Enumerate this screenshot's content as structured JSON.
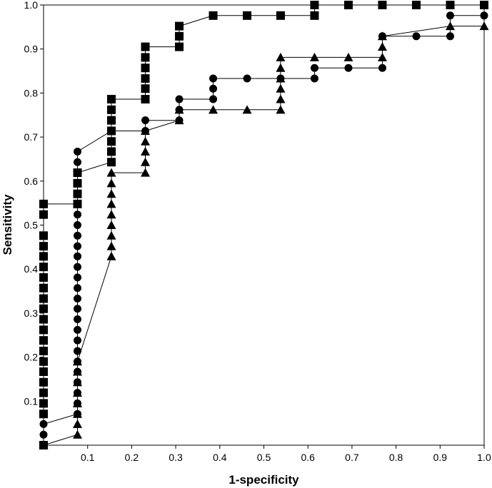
{
  "chart_data": {
    "type": "line",
    "title": "",
    "xlabel": "1-specificity",
    "ylabel": "Sensitivity",
    "xlim": [
      0,
      1
    ],
    "ylim": [
      0,
      1
    ],
    "x_ticks": [
      {
        "value": 0.1,
        "label": "0.1"
      },
      {
        "value": 0.2,
        "label": "0.2"
      },
      {
        "value": 0.3,
        "label": "0.3"
      },
      {
        "value": 0.4,
        "label": "0.4"
      },
      {
        "value": 0.5,
        "label": "0.5"
      },
      {
        "value": 0.6,
        "label": "0.6"
      },
      {
        "value": 0.7,
        "label": "0.7"
      },
      {
        "value": 0.8,
        "label": "0.8"
      },
      {
        "value": 0.9,
        "label": "0.9"
      },
      {
        "value": 1.0,
        "label": "1.0"
      }
    ],
    "y_ticks": [
      {
        "value": 0.1,
        "label": "0.1"
      },
      {
        "value": 0.2,
        "label": "0.2"
      },
      {
        "value": 0.3,
        "label": "0.3"
      },
      {
        "value": 0.4,
        "label": "0.4"
      },
      {
        "value": 0.5,
        "label": "0.5"
      },
      {
        "value": 0.6,
        "label": "0.6"
      },
      {
        "value": 0.7,
        "label": "0.7"
      },
      {
        "value": 0.8,
        "label": "0.8"
      },
      {
        "value": 0.9,
        "label": "0.9"
      },
      {
        "value": 1.0,
        "label": "1.0"
      }
    ],
    "grid": false,
    "legend": "none",
    "series": [
      {
        "marker": "square",
        "color": "#000000",
        "points": [
          [
            0,
            0
          ],
          [
            0,
            0.071
          ],
          [
            0,
            0.095
          ],
          [
            0,
            0.119
          ],
          [
            0,
            0.143
          ],
          [
            0,
            0.167
          ],
          [
            0,
            0.19
          ],
          [
            0,
            0.214
          ],
          [
            0,
            0.238
          ],
          [
            0,
            0.262
          ],
          [
            0,
            0.286
          ],
          [
            0,
            0.31
          ],
          [
            0,
            0.333
          ],
          [
            0,
            0.357
          ],
          [
            0,
            0.381
          ],
          [
            0,
            0.405
          ],
          [
            0,
            0.429
          ],
          [
            0,
            0.452
          ],
          [
            0,
            0.476
          ],
          [
            0,
            0.524
          ],
          [
            0,
            0.548
          ],
          [
            0.077,
            0.548
          ],
          [
            0.077,
            0.571
          ],
          [
            0.077,
            0.595
          ],
          [
            0.077,
            0.619
          ],
          [
            0.154,
            0.643
          ],
          [
            0.154,
            0.667
          ],
          [
            0.154,
            0.69
          ],
          [
            0.154,
            0.714
          ],
          [
            0.154,
            0.738
          ],
          [
            0.154,
            0.762
          ],
          [
            0.154,
            0.786
          ],
          [
            0.231,
            0.786
          ],
          [
            0.231,
            0.81
          ],
          [
            0.231,
            0.833
          ],
          [
            0.231,
            0.857
          ],
          [
            0.231,
            0.881
          ],
          [
            0.231,
            0.905
          ],
          [
            0.308,
            0.905
          ],
          [
            0.308,
            0.929
          ],
          [
            0.308,
            0.952
          ],
          [
            0.385,
            0.976
          ],
          [
            0.462,
            0.976
          ],
          [
            0.538,
            0.976
          ],
          [
            0.615,
            0.976
          ],
          [
            0.615,
            1.0
          ],
          [
            0.692,
            1.0
          ],
          [
            0.769,
            1.0
          ],
          [
            0.846,
            1.0
          ],
          [
            0.923,
            1.0
          ],
          [
            1.0,
            1.0
          ]
        ]
      },
      {
        "marker": "circle",
        "color": "#000000",
        "points": [
          [
            0,
            0
          ],
          [
            0,
            0.024
          ],
          [
            0,
            0.048
          ],
          [
            0.077,
            0.071
          ],
          [
            0.077,
            0.095
          ],
          [
            0.077,
            0.119
          ],
          [
            0.077,
            0.143
          ],
          [
            0.077,
            0.167
          ],
          [
            0.077,
            0.19
          ],
          [
            0.077,
            0.214
          ],
          [
            0.077,
            0.238
          ],
          [
            0.077,
            0.262
          ],
          [
            0.077,
            0.286
          ],
          [
            0.077,
            0.31
          ],
          [
            0.077,
            0.333
          ],
          [
            0.077,
            0.357
          ],
          [
            0.077,
            0.381
          ],
          [
            0.077,
            0.405
          ],
          [
            0.077,
            0.429
          ],
          [
            0.077,
            0.452
          ],
          [
            0.077,
            0.476
          ],
          [
            0.077,
            0.5
          ],
          [
            0.077,
            0.524
          ],
          [
            0.077,
            0.548
          ],
          [
            0.077,
            0.571
          ],
          [
            0.077,
            0.595
          ],
          [
            0.077,
            0.619
          ],
          [
            0.077,
            0.643
          ],
          [
            0.077,
            0.667
          ],
          [
            0.154,
            0.714
          ],
          [
            0.231,
            0.714
          ],
          [
            0.231,
            0.738
          ],
          [
            0.308,
            0.738
          ],
          [
            0.308,
            0.762
          ],
          [
            0.308,
            0.786
          ],
          [
            0.385,
            0.786
          ],
          [
            0.385,
            0.81
          ],
          [
            0.385,
            0.833
          ],
          [
            0.462,
            0.833
          ],
          [
            0.538,
            0.833
          ],
          [
            0.615,
            0.833
          ],
          [
            0.615,
            0.857
          ],
          [
            0.692,
            0.857
          ],
          [
            0.769,
            0.857
          ],
          [
            0.769,
            0.929
          ],
          [
            0.846,
            0.929
          ],
          [
            0.923,
            0.929
          ],
          [
            0.923,
            0.976
          ],
          [
            1.0,
            0.976
          ]
        ]
      },
      {
        "marker": "triangle",
        "color": "#000000",
        "points": [
          [
            0,
            0
          ],
          [
            0.077,
            0.024
          ],
          [
            0.077,
            0.048
          ],
          [
            0.077,
            0.071
          ],
          [
            0.077,
            0.095
          ],
          [
            0.077,
            0.119
          ],
          [
            0.077,
            0.143
          ],
          [
            0.077,
            0.167
          ],
          [
            0.077,
            0.19
          ],
          [
            0.154,
            0.429
          ],
          [
            0.154,
            0.452
          ],
          [
            0.154,
            0.476
          ],
          [
            0.154,
            0.5
          ],
          [
            0.154,
            0.524
          ],
          [
            0.154,
            0.548
          ],
          [
            0.154,
            0.571
          ],
          [
            0.154,
            0.595
          ],
          [
            0.154,
            0.619
          ],
          [
            0.231,
            0.619
          ],
          [
            0.231,
            0.643
          ],
          [
            0.231,
            0.667
          ],
          [
            0.231,
            0.69
          ],
          [
            0.231,
            0.714
          ],
          [
            0.308,
            0.738
          ],
          [
            0.308,
            0.762
          ],
          [
            0.385,
            0.762
          ],
          [
            0.462,
            0.762
          ],
          [
            0.538,
            0.762
          ],
          [
            0.538,
            0.786
          ],
          [
            0.538,
            0.81
          ],
          [
            0.538,
            0.833
          ],
          [
            0.538,
            0.857
          ],
          [
            0.538,
            0.881
          ],
          [
            0.615,
            0.881
          ],
          [
            0.692,
            0.881
          ],
          [
            0.769,
            0.881
          ],
          [
            0.769,
            0.905
          ],
          [
            0.769,
            0.929
          ],
          [
            0.923,
            0.952
          ],
          [
            1.0,
            0.952
          ]
        ]
      }
    ]
  }
}
